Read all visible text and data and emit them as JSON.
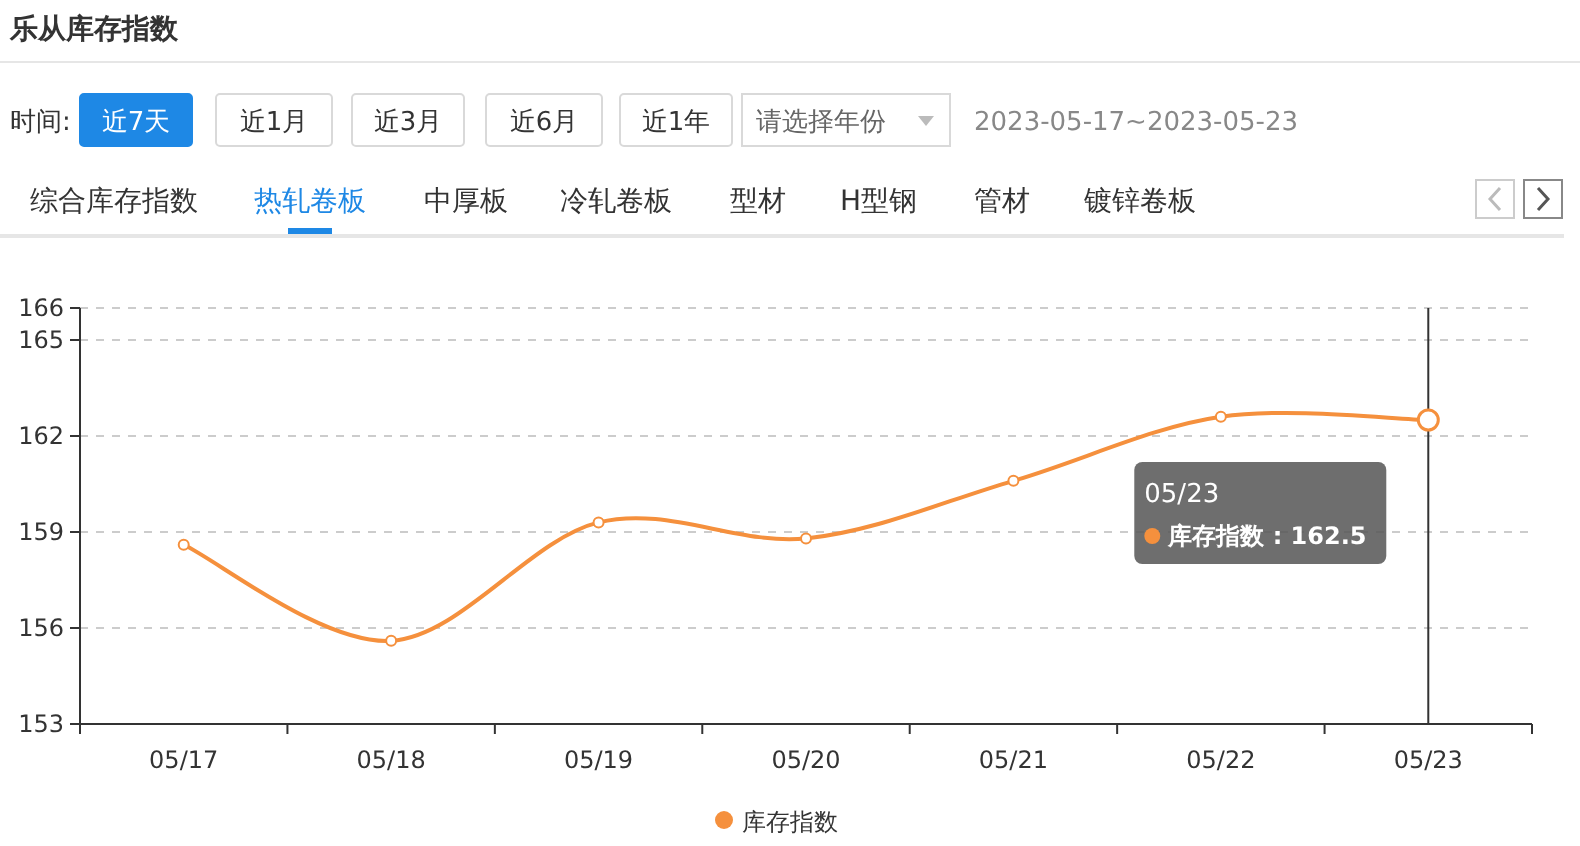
{
  "chart_data": {
    "type": "line",
    "title": "乐从库存指数",
    "annotations": [
      "时间:",
      "近7天",
      "近1月",
      "近3月",
      "近6月",
      "近1年",
      "请选择年份",
      "2023-05-17~2023-05-23",
      "综合库存指数",
      "热轧卷板",
      "中厚板",
      "冷轧卷板",
      "型材",
      "H型钢",
      "管材",
      "镀锌卷板",
      "05/23\n库存指数 : 162.5"
    ],
    "categories": [
      "05/17",
      "05/18",
      "05/19",
      "05/20",
      "05/21",
      "05/22",
      "05/23"
    ],
    "series": [
      {
        "name": "库存指数",
        "color": "#f5903d",
        "values": [
          158.6,
          155.6,
          159.3,
          158.8,
          160.6,
          162.6,
          162.5
        ]
      }
    ],
    "ylim": [
      153,
      166
    ],
    "yticks": [
      153,
      156,
      159,
      162,
      165,
      166
    ],
    "grid": "y",
    "legend": "bottom",
    "marker": "circle",
    "ref_lines": [
      {
        "axis": "x",
        "value": "05/23",
        "color": "#333333"
      }
    ]
  }
}
